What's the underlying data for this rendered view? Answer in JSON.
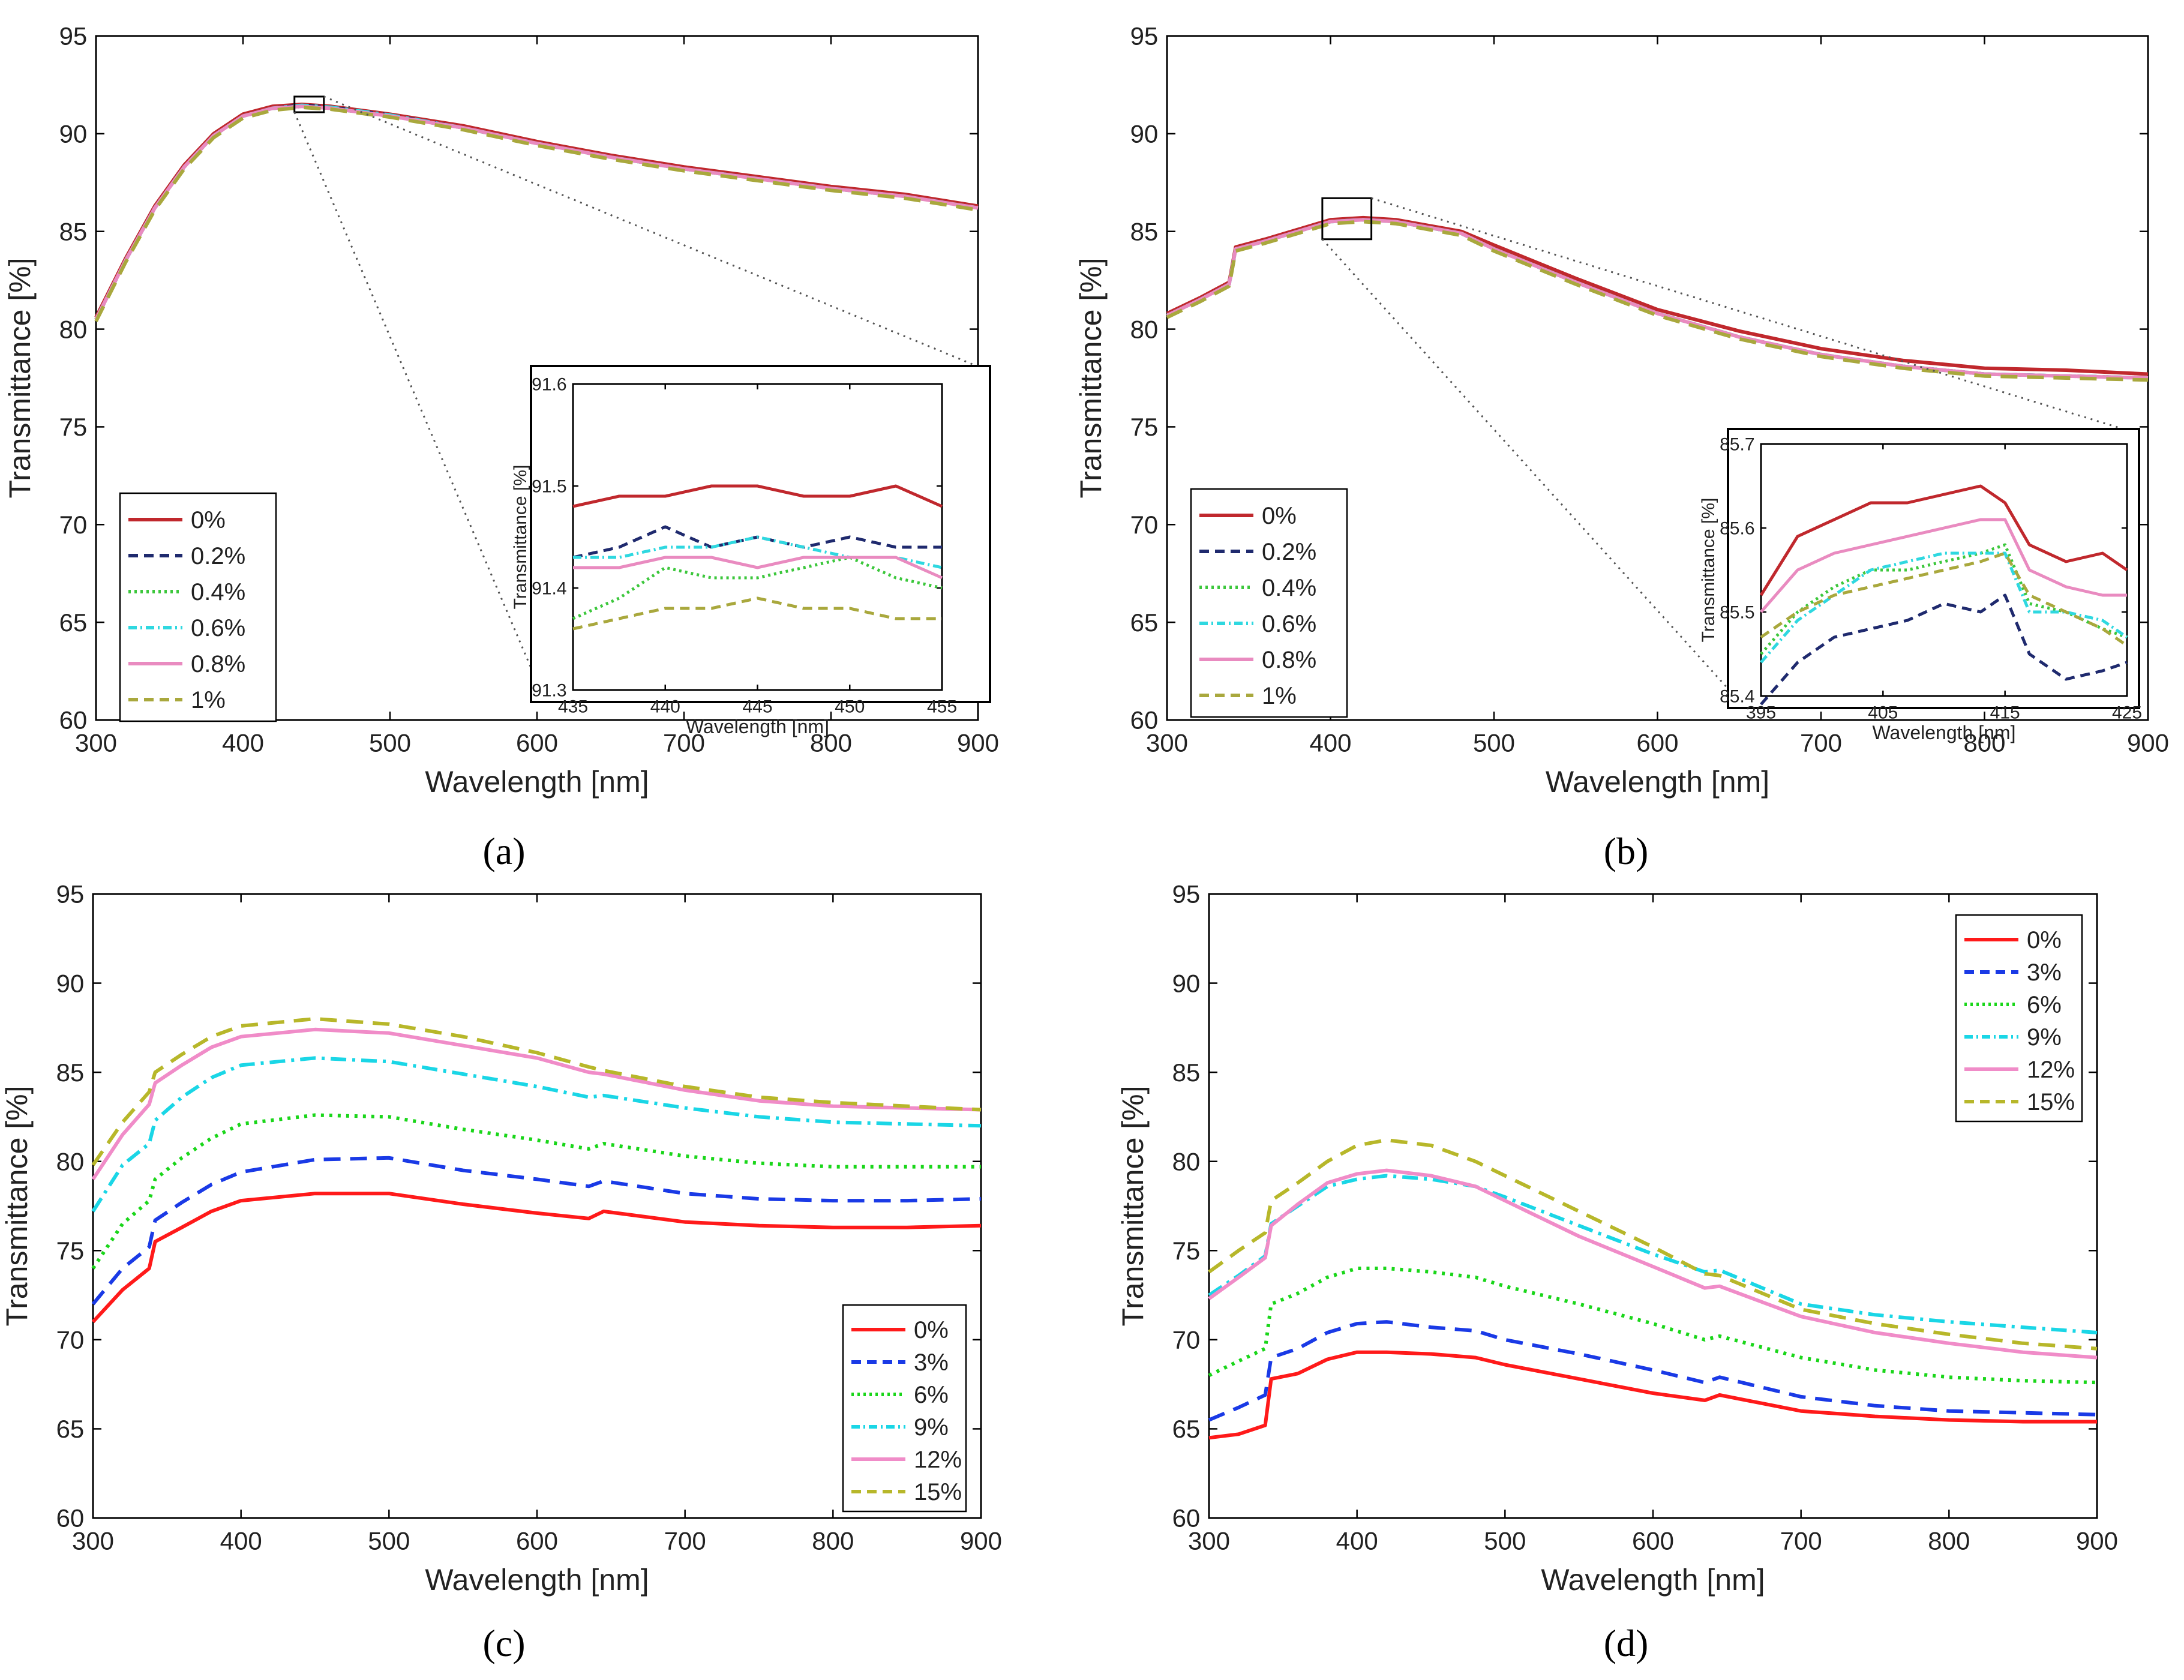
{
  "figure": {
    "panel_labels": [
      "(a)",
      "(b)",
      "(c)",
      "(d)"
    ]
  },
  "chart_data": [
    {
      "id": "a",
      "type": "line",
      "xlabel": "Wavelength [nm]",
      "ylabel": "Transmittance [%]",
      "xlim": [
        300,
        900
      ],
      "ylim": [
        60,
        95
      ],
      "xticks": [
        300,
        400,
        500,
        600,
        700,
        800,
        900
      ],
      "yticks": [
        60,
        65,
        70,
        75,
        80,
        85,
        90,
        95
      ],
      "legend_position": "bottom-left",
      "x": [
        300,
        320,
        340,
        360,
        380,
        400,
        420,
        440,
        460,
        480,
        500,
        550,
        600,
        650,
        700,
        750,
        800,
        850,
        900
      ],
      "series": [
        {
          "name": "0%",
          "color": "#c0282d",
          "dash": "solid",
          "values": [
            80.6,
            83.6,
            86.3,
            88.4,
            90.0,
            91.0,
            91.4,
            91.5,
            91.4,
            91.2,
            91.0,
            90.4,
            89.6,
            88.9,
            88.3,
            87.8,
            87.3,
            86.9,
            86.3
          ]
        },
        {
          "name": "0.2%",
          "color": "#1f2a6e",
          "dash": "dash",
          "values": [
            80.5,
            83.5,
            86.2,
            88.3,
            89.9,
            90.9,
            91.3,
            91.45,
            91.35,
            91.15,
            90.95,
            90.3,
            89.5,
            88.8,
            88.2,
            87.7,
            87.2,
            86.8,
            86.2
          ]
        },
        {
          "name": "0.4%",
          "color": "#3cc73c",
          "dash": "dot",
          "values": [
            80.5,
            83.5,
            86.2,
            88.3,
            89.9,
            90.9,
            91.3,
            91.4,
            91.3,
            91.1,
            90.9,
            90.3,
            89.5,
            88.8,
            88.2,
            87.7,
            87.2,
            86.8,
            86.2
          ]
        },
        {
          "name": "0.6%",
          "color": "#2fd8e0",
          "dash": "dashdot",
          "values": [
            80.5,
            83.5,
            86.2,
            88.3,
            89.9,
            90.9,
            91.3,
            91.45,
            91.35,
            91.15,
            90.95,
            90.3,
            89.5,
            88.8,
            88.2,
            87.7,
            87.2,
            86.8,
            86.2
          ]
        },
        {
          "name": "0.8%",
          "color": "#e98bc0",
          "dash": "solid",
          "values": [
            80.5,
            83.5,
            86.2,
            88.3,
            89.9,
            90.9,
            91.3,
            91.4,
            91.3,
            91.1,
            90.9,
            90.3,
            89.5,
            88.8,
            88.2,
            87.7,
            87.2,
            86.8,
            86.2
          ]
        },
        {
          "name": "1%",
          "color": "#a9a83d",
          "dash": "dash",
          "values": [
            80.4,
            83.4,
            86.1,
            88.2,
            89.8,
            90.8,
            91.2,
            91.35,
            91.25,
            91.05,
            90.85,
            90.2,
            89.4,
            88.7,
            88.1,
            87.6,
            87.1,
            86.7,
            86.1
          ]
        }
      ],
      "inset": {
        "xlabel": "Wavelength [nm]",
        "ylabel": "Transmittance [%]",
        "xlim": [
          435,
          455
        ],
        "ylim": [
          91.3,
          91.6
        ],
        "xticks": [
          435,
          440,
          445,
          450,
          455
        ],
        "yticks": [
          91.3,
          91.4,
          91.5,
          91.6
        ],
        "x": [
          435,
          437.5,
          440,
          442.5,
          445,
          447.5,
          450,
          452.5,
          455
        ],
        "series": [
          {
            "name": "0%",
            "values": [
              91.48,
              91.49,
              91.49,
              91.5,
              91.5,
              91.49,
              91.49,
              91.5,
              91.48
            ]
          },
          {
            "name": "0.2%",
            "values": [
              91.43,
              91.44,
              91.46,
              91.44,
              91.45,
              91.44,
              91.45,
              91.44,
              91.44
            ]
          },
          {
            "name": "0.4%",
            "values": [
              91.37,
              91.39,
              91.42,
              91.41,
              91.41,
              91.42,
              91.43,
              91.41,
              91.4
            ]
          },
          {
            "name": "0.6%",
            "values": [
              91.43,
              91.43,
              91.44,
              91.44,
              91.45,
              91.44,
              91.43,
              91.43,
              91.42
            ]
          },
          {
            "name": "0.8%",
            "values": [
              91.42,
              91.42,
              91.43,
              91.43,
              91.42,
              91.43,
              91.43,
              91.43,
              91.41
            ]
          },
          {
            "name": "1%",
            "values": [
              91.36,
              91.37,
              91.38,
              91.38,
              91.39,
              91.38,
              91.38,
              91.37,
              91.37
            ]
          }
        ]
      }
    },
    {
      "id": "b",
      "type": "line",
      "xlabel": "Wavelength [nm]",
      "ylabel": "Transmittance [%]",
      "xlim": [
        300,
        900
      ],
      "ylim": [
        60,
        95
      ],
      "xticks": [
        300,
        400,
        500,
        600,
        700,
        800,
        900
      ],
      "yticks": [
        60,
        65,
        70,
        75,
        80,
        85,
        90,
        95
      ],
      "legend_position": "bottom-left",
      "x": [
        300,
        320,
        338,
        342,
        360,
        380,
        400,
        420,
        440,
        460,
        480,
        500,
        550,
        600,
        650,
        700,
        750,
        800,
        850,
        900
      ],
      "series": [
        {
          "name": "0%",
          "color": "#c0282d",
          "dash": "solid",
          "values": [
            80.8,
            81.6,
            82.4,
            84.2,
            84.6,
            85.1,
            85.6,
            85.7,
            85.6,
            85.3,
            85.0,
            84.3,
            82.6,
            81.0,
            79.9,
            79.0,
            78.4,
            78.0,
            77.9,
            77.7
          ]
        },
        {
          "name": "0.2%",
          "color": "#1f2a6e",
          "dash": "dash",
          "values": [
            80.7,
            81.5,
            82.3,
            84.1,
            84.5,
            85.0,
            85.5,
            85.6,
            85.5,
            85.2,
            84.9,
            84.1,
            82.4,
            80.8,
            79.6,
            78.7,
            78.1,
            77.7,
            77.6,
            77.5
          ]
        },
        {
          "name": "0.4%",
          "color": "#3cc73c",
          "dash": "dot",
          "values": [
            80.7,
            81.5,
            82.3,
            84.1,
            84.5,
            85.0,
            85.5,
            85.6,
            85.5,
            85.2,
            84.9,
            84.1,
            82.4,
            80.8,
            79.6,
            78.7,
            78.1,
            77.7,
            77.6,
            77.5
          ]
        },
        {
          "name": "0.6%",
          "color": "#2fd8e0",
          "dash": "dashdot",
          "values": [
            80.7,
            81.5,
            82.3,
            84.1,
            84.5,
            85.0,
            85.5,
            85.6,
            85.5,
            85.2,
            84.9,
            84.1,
            82.4,
            80.8,
            79.6,
            78.7,
            78.1,
            77.7,
            77.6,
            77.5
          ]
        },
        {
          "name": "0.8%",
          "color": "#e98bc0",
          "dash": "solid",
          "values": [
            80.7,
            81.5,
            82.3,
            84.1,
            84.5,
            85.0,
            85.5,
            85.6,
            85.5,
            85.2,
            84.9,
            84.1,
            82.4,
            80.8,
            79.6,
            78.7,
            78.1,
            77.7,
            77.6,
            77.5
          ]
        },
        {
          "name": "1%",
          "color": "#a9a83d",
          "dash": "dash",
          "values": [
            80.6,
            81.4,
            82.2,
            84.0,
            84.4,
            84.9,
            85.4,
            85.5,
            85.4,
            85.1,
            84.8,
            84.0,
            82.3,
            80.7,
            79.5,
            78.6,
            78.0,
            77.6,
            77.5,
            77.4
          ]
        }
      ],
      "inset": {
        "xlabel": "Wavelength [nm]",
        "ylabel": "Transmittance [%]",
        "xlim": [
          395,
          425
        ],
        "ylim": [
          85.4,
          85.7
        ],
        "xticks": [
          395,
          405,
          415,
          425
        ],
        "yticks": [
          85.4,
          85.5,
          85.6,
          85.7
        ],
        "x": [
          395,
          398,
          401,
          404,
          407,
          410,
          413,
          415,
          417,
          420,
          423,
          425
        ],
        "series": [
          {
            "name": "0%",
            "values": [
              85.52,
              85.59,
              85.61,
              85.63,
              85.63,
              85.64,
              85.65,
              85.63,
              85.58,
              85.56,
              85.57,
              85.55
            ]
          },
          {
            "name": "0.2%",
            "values": [
              85.39,
              85.44,
              85.47,
              85.48,
              85.49,
              85.51,
              85.5,
              85.52,
              85.45,
              85.42,
              85.43,
              85.44
            ]
          },
          {
            "name": "0.4%",
            "values": [
              85.45,
              85.5,
              85.53,
              85.55,
              85.55,
              85.56,
              85.57,
              85.58,
              85.51,
              85.5,
              85.48,
              85.47
            ]
          },
          {
            "name": "0.6%",
            "values": [
              85.44,
              85.49,
              85.52,
              85.55,
              85.56,
              85.57,
              85.57,
              85.57,
              85.5,
              85.5,
              85.49,
              85.47
            ]
          },
          {
            "name": "0.8%",
            "values": [
              85.5,
              85.55,
              85.57,
              85.58,
              85.59,
              85.6,
              85.61,
              85.61,
              85.55,
              85.53,
              85.52,
              85.52
            ]
          },
          {
            "name": "1%",
            "values": [
              85.47,
              85.5,
              85.52,
              85.53,
              85.54,
              85.55,
              85.56,
              85.57,
              85.52,
              85.5,
              85.48,
              85.46
            ]
          }
        ]
      }
    },
    {
      "id": "c",
      "type": "line",
      "xlabel": "Wavelength [nm]",
      "ylabel": "Transmittance [%]",
      "xlim": [
        300,
        900
      ],
      "ylim": [
        60,
        95
      ],
      "xticks": [
        300,
        400,
        500,
        600,
        700,
        800,
        900
      ],
      "yticks": [
        60,
        65,
        70,
        75,
        80,
        85,
        90,
        95
      ],
      "legend_position": "bottom-right",
      "x": [
        300,
        320,
        338,
        342,
        360,
        380,
        400,
        450,
        500,
        550,
        600,
        635,
        645,
        700,
        750,
        800,
        850,
        900
      ],
      "series": [
        {
          "name": "0%",
          "color": "#ff1a1a",
          "dash": "solid",
          "values": [
            71.0,
            72.8,
            74.0,
            75.5,
            76.3,
            77.2,
            77.8,
            78.2,
            78.2,
            77.6,
            77.1,
            76.8,
            77.2,
            76.6,
            76.4,
            76.3,
            76.3,
            76.4
          ]
        },
        {
          "name": "3%",
          "color": "#1a3ae6",
          "dash": "dash",
          "values": [
            72.0,
            74.0,
            75.2,
            76.7,
            77.7,
            78.7,
            79.4,
            80.1,
            80.2,
            79.5,
            79.0,
            78.6,
            78.9,
            78.2,
            77.9,
            77.8,
            77.8,
            77.9
          ]
        },
        {
          "name": "6%",
          "color": "#1ad61a",
          "dash": "dot",
          "values": [
            74.0,
            76.5,
            77.8,
            79.0,
            80.2,
            81.3,
            82.1,
            82.6,
            82.5,
            81.8,
            81.2,
            80.7,
            81.0,
            80.3,
            79.9,
            79.7,
            79.7,
            79.7
          ]
        },
        {
          "name": "9%",
          "color": "#1ad6e6",
          "dash": "dashdot",
          "values": [
            77.2,
            79.8,
            81.0,
            82.3,
            83.6,
            84.7,
            85.4,
            85.8,
            85.6,
            84.9,
            84.2,
            83.6,
            83.7,
            83.0,
            82.5,
            82.2,
            82.1,
            82.0
          ]
        },
        {
          "name": "12%",
          "color": "#f08cc8",
          "dash": "solid",
          "values": [
            79.0,
            81.5,
            83.2,
            84.4,
            85.4,
            86.4,
            87.0,
            87.4,
            87.2,
            86.5,
            85.8,
            85.0,
            84.9,
            84.0,
            83.4,
            83.1,
            83.0,
            82.9
          ]
        },
        {
          "name": "15%",
          "color": "#b7b72a",
          "dash": "dash",
          "values": [
            79.8,
            82.2,
            83.9,
            85.0,
            86.0,
            87.0,
            87.6,
            88.0,
            87.7,
            87.0,
            86.1,
            85.3,
            85.1,
            84.2,
            83.6,
            83.3,
            83.1,
            82.9
          ]
        }
      ]
    },
    {
      "id": "d",
      "type": "line",
      "xlabel": "Wavelength [nm]",
      "ylabel": "Transmittance [%]",
      "xlim": [
        300,
        900
      ],
      "ylim": [
        60,
        95
      ],
      "xticks": [
        300,
        400,
        500,
        600,
        700,
        800,
        900
      ],
      "yticks": [
        60,
        65,
        70,
        75,
        80,
        85,
        90,
        95
      ],
      "legend_position": "top-right",
      "x": [
        300,
        320,
        338,
        342,
        360,
        380,
        400,
        420,
        450,
        480,
        500,
        550,
        600,
        635,
        645,
        700,
        750,
        800,
        850,
        900
      ],
      "series": [
        {
          "name": "0%",
          "color": "#ff1a1a",
          "dash": "solid",
          "values": [
            64.5,
            64.7,
            65.2,
            67.8,
            68.1,
            68.9,
            69.3,
            69.3,
            69.2,
            69.0,
            68.6,
            67.8,
            67.0,
            66.6,
            66.9,
            66.0,
            65.7,
            65.5,
            65.4,
            65.4
          ]
        },
        {
          "name": "3%",
          "color": "#1a3ae6",
          "dash": "dash",
          "values": [
            65.5,
            66.2,
            66.9,
            69.0,
            69.5,
            70.4,
            70.9,
            71.0,
            70.7,
            70.5,
            70.0,
            69.2,
            68.3,
            67.6,
            67.9,
            66.8,
            66.3,
            66.0,
            65.9,
            65.8
          ]
        },
        {
          "name": "6%",
          "color": "#1ad61a",
          "dash": "dot",
          "values": [
            68.0,
            68.8,
            69.5,
            72.0,
            72.6,
            73.5,
            74.0,
            74.0,
            73.8,
            73.5,
            73.0,
            72.0,
            70.9,
            70.0,
            70.2,
            69.0,
            68.3,
            67.9,
            67.7,
            67.6
          ]
        },
        {
          "name": "9%",
          "color": "#1ad6e6",
          "dash": "dashdot",
          "values": [
            72.5,
            73.6,
            74.7,
            76.5,
            77.5,
            78.6,
            79.0,
            79.2,
            79.0,
            78.6,
            78.0,
            76.4,
            74.8,
            73.8,
            73.9,
            72.0,
            71.4,
            71.0,
            70.7,
            70.4
          ]
        },
        {
          "name": "12%",
          "color": "#f08cc8",
          "dash": "solid",
          "values": [
            72.3,
            73.5,
            74.6,
            76.4,
            77.6,
            78.8,
            79.3,
            79.5,
            79.2,
            78.6,
            77.8,
            75.8,
            74.1,
            72.9,
            73.0,
            71.3,
            70.4,
            69.8,
            69.3,
            69.0
          ]
        },
        {
          "name": "15%",
          "color": "#b7b72a",
          "dash": "dash",
          "values": [
            73.8,
            75.0,
            76.0,
            77.8,
            78.8,
            80.0,
            80.9,
            81.2,
            80.9,
            80.0,
            79.2,
            77.2,
            75.2,
            73.7,
            73.6,
            71.7,
            70.9,
            70.3,
            69.8,
            69.5
          ]
        }
      ]
    }
  ]
}
